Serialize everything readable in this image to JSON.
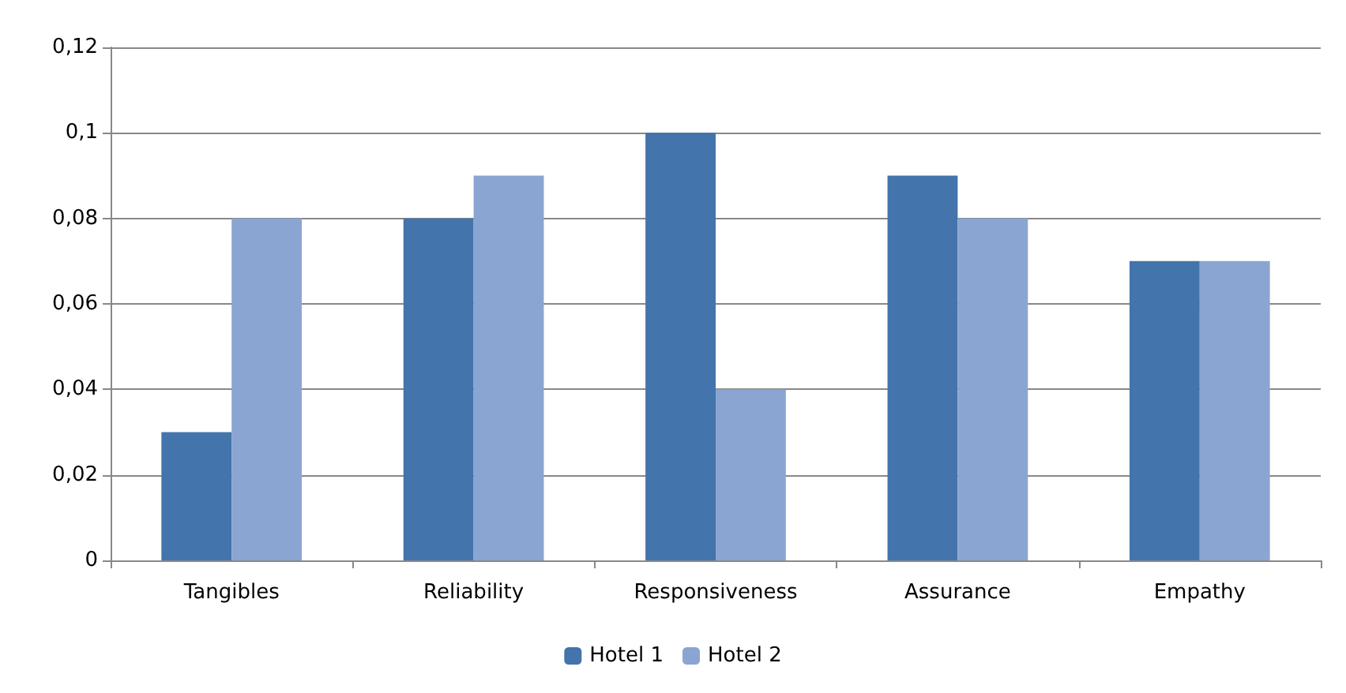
{
  "chart_data": {
    "type": "bar",
    "categories": [
      "Tangibles",
      "Reliability",
      "Responsiveness",
      "Assurance",
      "Empathy"
    ],
    "series": [
      {
        "name": "Hotel 1",
        "color": "#4374ab",
        "values": [
          0.03,
          0.08,
          0.1,
          0.09,
          0.07
        ]
      },
      {
        "name": "Hotel 2",
        "color": "#8aa5d1",
        "values": [
          0.08,
          0.09,
          0.04,
          0.08,
          0.07
        ]
      }
    ],
    "ylim": [
      0,
      0.12
    ],
    "yticks": [
      0,
      {
        "value": 0.02,
        "label": "0,02"
      },
      {
        "value": 0.04,
        "label": "0,04"
      },
      {
        "value": 0.06,
        "label": "0,06"
      },
      {
        "value": 0.08,
        "label": "0,08"
      },
      {
        "value": 0.1,
        "label": "0,1"
      },
      {
        "value": 0.12,
        "label": "0,12"
      }
    ],
    "grid": true,
    "legend": "bottom"
  }
}
